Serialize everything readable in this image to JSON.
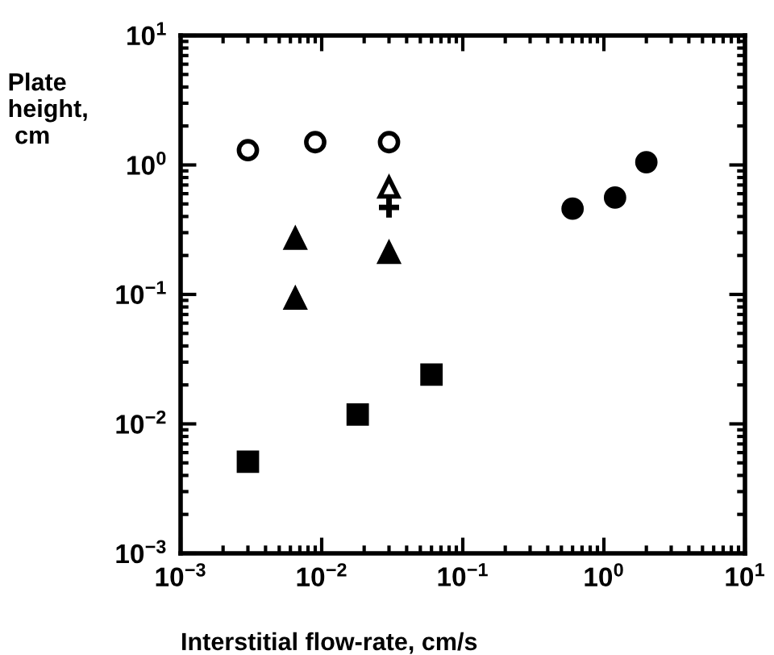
{
  "chart_data": {
    "type": "scatter",
    "xlabel": "Interstitial flow-rate, cm/s",
    "ylabel": "Plate\nheight,\n cm",
    "log": "xy",
    "grid": false,
    "xlim": [
      0.001,
      10
    ],
    "ylim": [
      0.001,
      10
    ],
    "xticks": [
      {
        "value": 0.001,
        "label": "10$^{−3}$"
      },
      {
        "value": 0.01,
        "label": "10$^{−2}$"
      },
      {
        "value": 0.1,
        "label": "10$^{−1}$"
      },
      {
        "value": 1,
        "label": "10$^{0}$"
      },
      {
        "value": 10,
        "label": "10$^{1}$"
      }
    ],
    "yticks": [
      {
        "value": 0.001,
        "label": "10$^{−3}$"
      },
      {
        "value": 0.01,
        "label": "10$^{−2}$"
      },
      {
        "value": 0.1,
        "label": "10$^{−1}$"
      },
      {
        "value": 1,
        "label": "10$^{0}$"
      },
      {
        "value": 10,
        "label": "10$^{1}$"
      }
    ],
    "series": [
      {
        "marker": "circle",
        "x": [
          0.003,
          0.009,
          0.03
        ],
        "values": [
          1.3,
          1.5,
          1.5
        ]
      },
      {
        "marker": "triangle",
        "x": [
          0.03
        ],
        "values": [
          0.67
        ]
      },
      {
        "color": "#000000",
        "marker": "cross",
        "x": [
          0.03
        ],
        "values": [
          0.47
        ]
      },
      {
        "color": "#000000",
        "marker": "triangle",
        "x": [
          0.0065,
          0.0065,
          0.03
        ],
        "values": [
          0.27,
          0.093,
          0.21
        ]
      },
      {
        "color": "#000000",
        "marker": "circle",
        "x": [
          0.6,
          1.2,
          2.0
        ],
        "values": [
          0.46,
          0.56,
          1.05
        ]
      },
      {
        "color": "#000000",
        "marker": "square",
        "x": [
          0.003,
          0.018,
          0.06
        ],
        "values": [
          0.0051,
          0.0118,
          0.024
        ]
      }
    ]
  }
}
